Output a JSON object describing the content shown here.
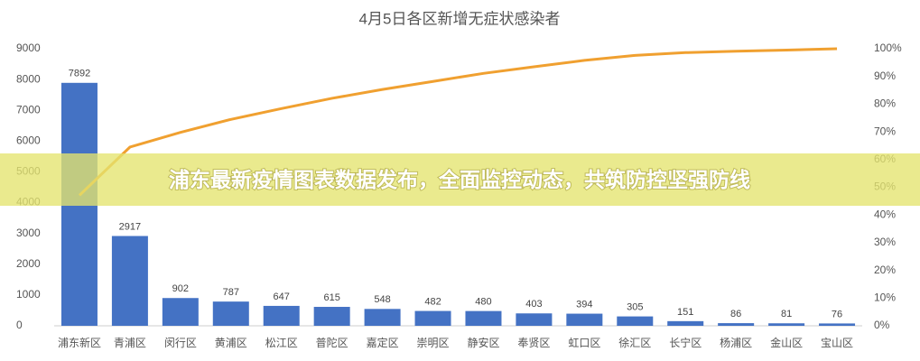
{
  "chart_data": {
    "type": "pareto",
    "title": "4月5日各区新增无症状感染者",
    "banner": "浦东最新疫情图表数据发布，全面监控动态，共筑防控坚强防线",
    "categories": [
      "浦东新区",
      "青浦区",
      "闵行区",
      "黄浦区",
      "松江区",
      "普陀区",
      "嘉定区",
      "崇明区",
      "静安区",
      "奉贤区",
      "虹口区",
      "徐汇区",
      "长宁区",
      "杨浦区",
      "金山区",
      "宝山区"
    ],
    "series": [
      {
        "color": "#4472c4",
        "values": [
          7892,
          2917,
          902,
          787,
          647,
          615,
          548,
          482,
          480,
          403,
          394,
          305,
          151,
          86,
          81,
          76
        ]
      },
      {
        "color": "#f0a030",
        "axis": "y2",
        "values": [
          47.1,
          64.5,
          69.8,
          74.5,
          78.4,
          82.1,
          85.3,
          88.2,
          91.1,
          93.5,
          95.8,
          97.6,
          98.6,
          99.1,
          99.5,
          100
        ]
      }
    ],
    "ylim": [
      0,
      9000
    ],
    "yticks": [
      0,
      1000,
      2000,
      3000,
      4000,
      5000,
      6000,
      7000,
      8000,
      9000
    ],
    "y2lim": [
      0,
      100
    ],
    "y2ticks": [
      {
        "value": 0,
        "label": "0%"
      },
      {
        "value": 10,
        "label": "10%"
      },
      {
        "value": 20,
        "label": "20%"
      },
      {
        "value": 30,
        "label": "30%"
      },
      {
        "value": 40,
        "label": "40%"
      },
      {
        "value": 50,
        "label": "50%"
      },
      {
        "value": 60,
        "label": "60%"
      },
      {
        "value": 70,
        "label": "70%"
      },
      {
        "value": 80,
        "label": "80%"
      },
      {
        "value": 90,
        "label": "90%"
      },
      {
        "value": 100,
        "label": "100%"
      }
    ]
  }
}
